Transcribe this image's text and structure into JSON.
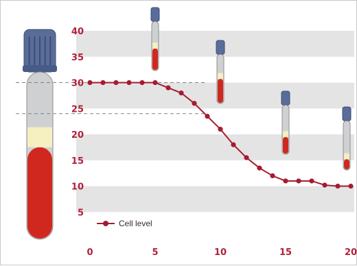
{
  "chart_data": {
    "type": "line",
    "title": "",
    "xlabel": "",
    "ylabel": "",
    "xlim": [
      0,
      20
    ],
    "ylim": [
      0,
      40
    ],
    "x_ticks": [
      0,
      5,
      10,
      15,
      20
    ],
    "y_ticks": [
      5,
      10,
      15,
      20,
      25,
      30,
      35,
      40
    ],
    "grid": "alternating horizontal bands",
    "legend_position": "bottom-left",
    "series": [
      {
        "name": "Cell level",
        "color": "#a51c30",
        "x": [
          0,
          1,
          2,
          3,
          4,
          5,
          6,
          7,
          8,
          9,
          10,
          11,
          12,
          13,
          14,
          15,
          16,
          17,
          18,
          19,
          20
        ],
        "y": [
          30,
          30,
          30,
          30,
          30,
          30,
          29,
          28,
          26,
          23.5,
          21,
          18,
          15.5,
          13.5,
          12,
          11,
          11,
          11,
          10.2,
          10,
          10
        ]
      }
    ],
    "reference_lines": [
      30,
      24
    ],
    "tube_icons": [
      {
        "x": 5,
        "fill_level": 0.45
      },
      {
        "x": 10,
        "fill_level": 0.5
      },
      {
        "x": 15,
        "fill_level": 0.35
      },
      {
        "x": 20,
        "fill_level": 0.22
      }
    ],
    "big_tube_fill_level": 0.55
  },
  "colors": {
    "band": "#e4e4e4",
    "tick": "#b01f3a",
    "cap": "#5a6d9a",
    "blood": "#d0281e",
    "plasma": "#f6efbf",
    "glass": "#cfd0d2"
  }
}
